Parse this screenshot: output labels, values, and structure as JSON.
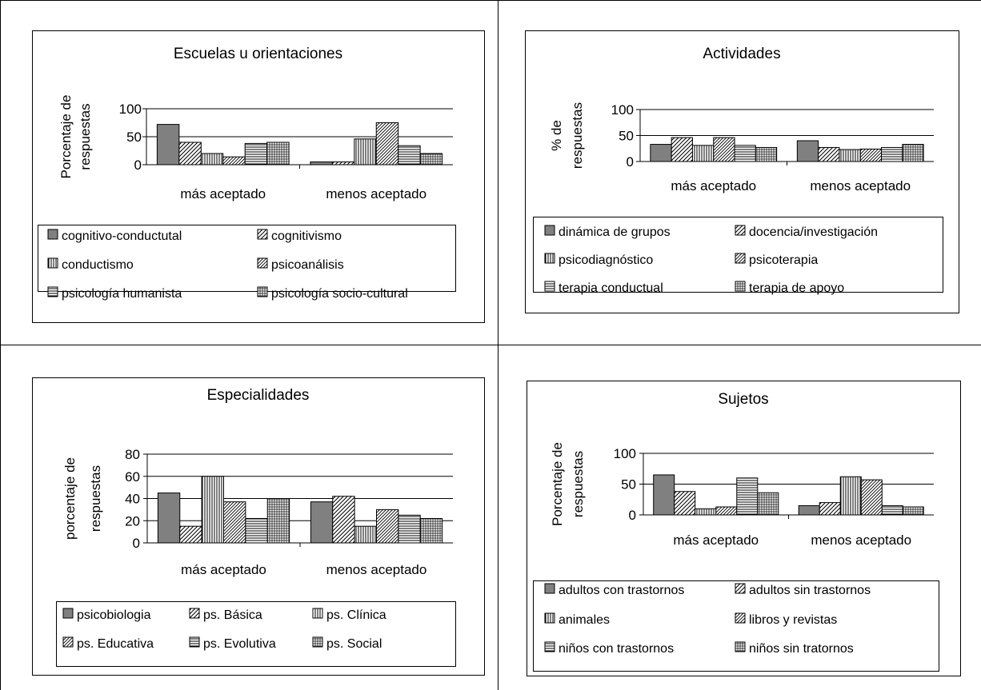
{
  "chart_data": [
    {
      "type": "bar",
      "title": "Escuelas u orientaciones",
      "ylabel": [
        "Porcentaje de",
        "respuestas"
      ],
      "ylim": [
        0,
        100
      ],
      "yticks": [
        "0",
        "50",
        "100"
      ],
      "categories": [
        "más aceptado",
        "menos aceptado"
      ],
      "series": [
        {
          "name": "cognitivo-conductutal",
          "values": [
            72,
            5
          ]
        },
        {
          "name": "cognitivismo",
          "values": [
            40,
            5
          ]
        },
        {
          "name": "conductismo",
          "values": [
            20,
            46
          ]
        },
        {
          "name": "psicoanálisis",
          "values": [
            14,
            75
          ]
        },
        {
          "name": "psicología humanista",
          "values": [
            38,
            34
          ]
        },
        {
          "name": "psicología socio-cultural",
          "values": [
            40,
            20
          ]
        }
      ]
    },
    {
      "type": "bar",
      "title": "Actividades",
      "ylabel": [
        "% de",
        "respuestas"
      ],
      "ylim": [
        0,
        100
      ],
      "yticks": [
        "0",
        "50",
        "100"
      ],
      "categories": [
        "más aceptado",
        "menos aceptado"
      ],
      "series": [
        {
          "name": "dinámica de grupos",
          "values": [
            33,
            40
          ]
        },
        {
          "name": "docencia/investigación",
          "values": [
            46,
            27
          ]
        },
        {
          "name": "psicodiagnóstico",
          "values": [
            31,
            23
          ]
        },
        {
          "name": "psicoterapia",
          "values": [
            46,
            24
          ]
        },
        {
          "name": "terapia conductual",
          "values": [
            31,
            27
          ]
        },
        {
          "name": "terapia de apoyo",
          "values": [
            27,
            33
          ]
        }
      ]
    },
    {
      "type": "bar",
      "title": "Especialidades",
      "ylabel": [
        "porcentaje de",
        "respuestas"
      ],
      "ylim": [
        0,
        80
      ],
      "yticks": [
        "0",
        "20",
        "40",
        "60",
        "80"
      ],
      "categories": [
        "más aceptado",
        "menos aceptado"
      ],
      "series": [
        {
          "name": "psicobiologia",
          "values": [
            45,
            37
          ]
        },
        {
          "name": "ps. Básica",
          "values": [
            15,
            42
          ]
        },
        {
          "name": "ps. Clínica",
          "values": [
            60,
            15
          ]
        },
        {
          "name": "ps. Educativa",
          "values": [
            37,
            30
          ]
        },
        {
          "name": "ps. Evolutiva",
          "values": [
            22,
            25
          ]
        },
        {
          "name": "ps. Social",
          "values": [
            40,
            22
          ]
        }
      ]
    },
    {
      "type": "bar",
      "title": "Sujetos",
      "ylabel": [
        "Porcentaje de",
        "respuestas"
      ],
      "ylim": [
        0,
        100
      ],
      "yticks": [
        "0",
        "50",
        "100"
      ],
      "categories": [
        "más aceptado",
        "menos aceptado"
      ],
      "series": [
        {
          "name": "adultos con trastornos",
          "values": [
            65,
            15
          ]
        },
        {
          "name": "adultos sin trastornos",
          "values": [
            38,
            20
          ]
        },
        {
          "name": "animales",
          "values": [
            10,
            62
          ]
        },
        {
          "name": "libros y revistas",
          "values": [
            13,
            57
          ]
        },
        {
          "name": "niños con trastornos",
          "values": [
            60,
            15
          ]
        },
        {
          "name": "niños sin tratornos",
          "values": [
            36,
            13
          ]
        }
      ]
    }
  ]
}
